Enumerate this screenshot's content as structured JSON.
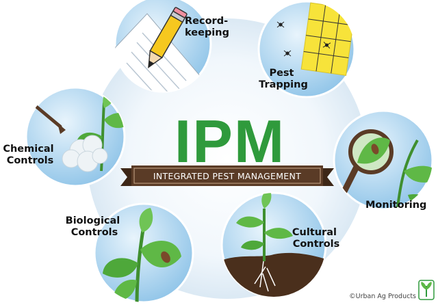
{
  "title": "IPM",
  "subtitle": "INTEGRATED PEST MANAGEMENT",
  "practices": [
    {
      "line1": "Record-",
      "line2": "keeping",
      "icon": "pencil-paper-icon"
    },
    {
      "line1": "Pest",
      "line2": "Trapping",
      "icon": "sticky-trap-icon"
    },
    {
      "line1": "Monitoring",
      "line2": "",
      "icon": "magnifier-leaf-icon"
    },
    {
      "line1": "Cultural",
      "line2": "Controls",
      "icon": "seedling-roots-icon"
    },
    {
      "line1": "Biological",
      "line2": "Controls",
      "icon": "plant-beetle-icon"
    },
    {
      "line1": "Chemical",
      "line2": "Controls",
      "icon": "spray-nozzle-icon"
    }
  ],
  "credit": "©Urban Ag Products",
  "colors": {
    "ipm_green": "#2f9a3c",
    "banner_brown": "#5a3b26",
    "circle_blue": "#a9d3ee",
    "hub_blue": "#e6f2fa",
    "leaf_green": "#5fb846"
  }
}
